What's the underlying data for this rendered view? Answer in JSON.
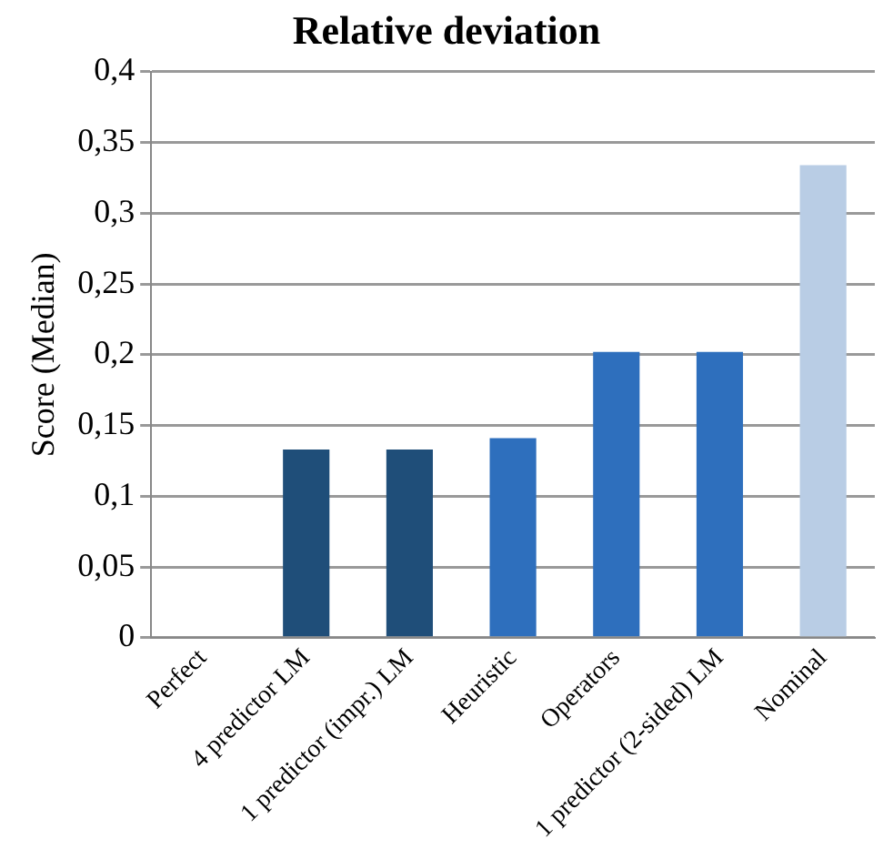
{
  "chart_data": {
    "type": "bar",
    "title": "Relative deviation",
    "ylabel": "Score (Median)",
    "categories": [
      "Perfect",
      "4 predictor LM",
      "1 predictor (impr.) LM",
      "Heuristic",
      "Operators",
      "1 predictor (2-sided) LM",
      "Nominal"
    ],
    "values": [
      0,
      0.133,
      0.133,
      0.141,
      0.202,
      0.202,
      0.334
    ],
    "colors": [
      "#1f4e79",
      "#1f4e79",
      "#1f4e79",
      "#2e6fbd",
      "#2e6fbd",
      "#2e6fbd",
      "#b9cde5"
    ],
    "ylim": [
      0,
      0.4
    ],
    "yticks": [
      0,
      {
        "value": 0.05,
        "label": "0,05"
      },
      {
        "value": 0.1,
        "label": "0,1"
      },
      {
        "value": 0.15,
        "label": "0,15"
      },
      {
        "value": 0.2,
        "label": "0,2"
      },
      {
        "value": 0.25,
        "label": "0,25"
      },
      {
        "value": 0.3,
        "label": "0,3"
      },
      {
        "value": 0.35,
        "label": "0,35"
      },
      {
        "value": 0.4,
        "label": "0,4"
      }
    ],
    "grid": "y",
    "legend": false
  }
}
